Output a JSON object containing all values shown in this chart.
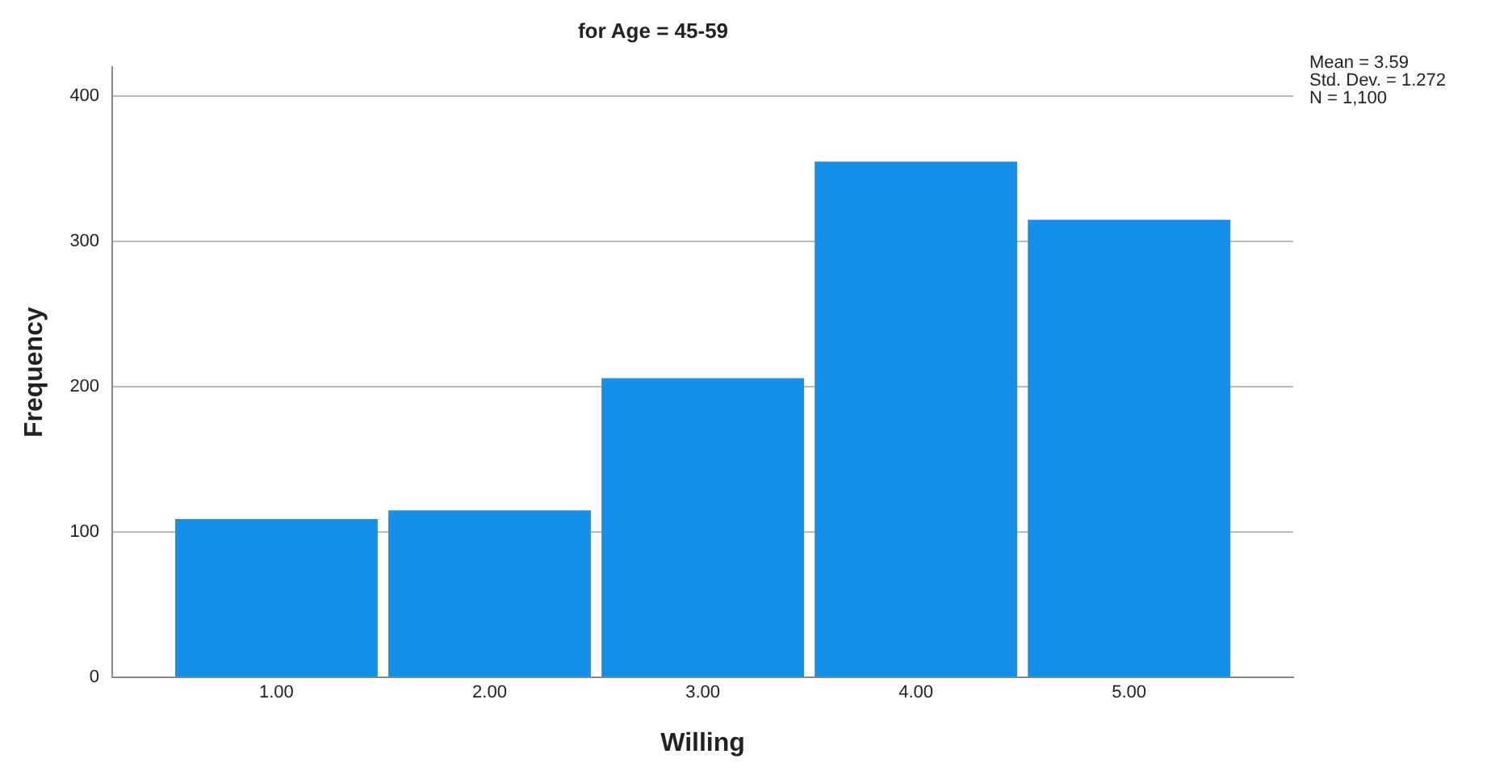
{
  "chart_data": {
    "type": "histogram",
    "title": "for Age = 45-59",
    "xlabel": "Willing",
    "ylabel": "Frequency",
    "bins": [
      0.5,
      1.5,
      2.5,
      3.5,
      4.5,
      5.5
    ],
    "values": [
      109,
      115,
      206,
      355,
      315
    ],
    "color": "#1590e8",
    "xlim": [
      0.23,
      5.77
    ],
    "xticks": [
      {
        "value": 1,
        "label": "1.00"
      },
      {
        "value": 2,
        "label": "2.00"
      },
      {
        "value": 3,
        "label": "3.00"
      },
      {
        "value": 4,
        "label": "4.00"
      },
      {
        "value": 5,
        "label": "5.00"
      }
    ],
    "ylim": [
      0,
      420
    ],
    "yticks": [
      0,
      100,
      200,
      300,
      400
    ],
    "grid": "y",
    "annotations": [
      "Mean = 3.59",
      "Std. Dev. = 1.272",
      "N = 1,100"
    ]
  }
}
